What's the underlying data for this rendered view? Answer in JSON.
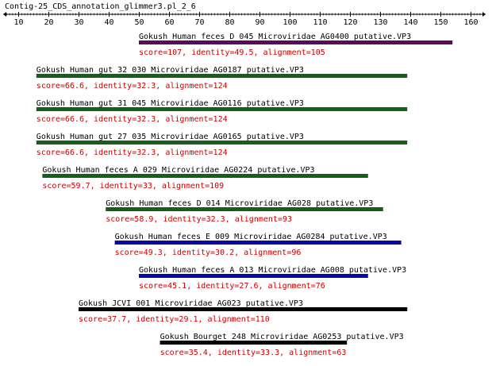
{
  "title": "Contig-25_CDS_annotation_glimmer3.pl_2_6",
  "axis": {
    "min": 5,
    "max": 165,
    "tick_labels": [
      "10",
      "20",
      "30",
      "40",
      "50",
      "60",
      "70",
      "80",
      "90",
      "100",
      "110",
      "120",
      "130",
      "140",
      "150",
      "160"
    ]
  },
  "colors": {
    "purple": "#5a0a5a",
    "green": "#1a5c1a",
    "blue": "#0a0aa0",
    "black": "#000000",
    "stats_text": "#cc0000"
  },
  "hits": [
    {
      "name": "Gokush_Human_feces_D_045_Microviridae_AG0400_putative.VP3",
      "stats": "score=107, identity=49.5, alignment=105",
      "start": 50,
      "end": 154,
      "color": "purple"
    },
    {
      "name": "Gokush_Human_gut_32_030_Microviridae_AG0187_putative.VP3",
      "stats": "score=66.6, identity=32.3, alignment=124",
      "start": 16,
      "end": 139,
      "color": "green"
    },
    {
      "name": "Gokush_Human_gut_31_045_Microviridae_AG0116_putative.VP3",
      "stats": "score=66.6, identity=32.3, alignment=124",
      "start": 16,
      "end": 139,
      "color": "green"
    },
    {
      "name": "Gokush_Human_gut_27_035_Microviridae_AG0165_putative.VP3",
      "stats": "score=66.6, identity=32.3, alignment=124",
      "start": 16,
      "end": 139,
      "color": "green"
    },
    {
      "name": "Gokush_Human_feces_A_029_Microviridae_AG0224_putative.VP3",
      "stats": "score=59.7, identity=33, alignment=109",
      "start": 18,
      "end": 126,
      "color": "green"
    },
    {
      "name": "Gokush_Human_feces_D_014_Microviridae_AG028_putative.VP3",
      "stats": "score=58.9, identity=32.3, alignment=93",
      "start": 39,
      "end": 131,
      "color": "green"
    },
    {
      "name": "Gokush_Human_feces_E_009_Microviridae_AG0284_putative.VP3",
      "stats": "score=49.3, identity=30.2, alignment=96",
      "start": 42,
      "end": 137,
      "color": "blue"
    },
    {
      "name": "Gokush_Human_feces_A_013_Microviridae_AG008_putative.VP3",
      "stats": "score=45.1, identity=27.6, alignment=76",
      "start": 50,
      "end": 126,
      "color": "blue"
    },
    {
      "name": "Gokush_JCVI_001_Microviridae_AG023_putative.VP3",
      "stats": "score=37.7, identity=29.1, alignment=110",
      "start": 30,
      "end": 139,
      "color": "black"
    },
    {
      "name": "Gokush_Bourget_248_Microviridae_AG0253_putative.VP3",
      "stats": "score=35.4, identity=33.3, alignment=63",
      "start": 57,
      "end": 119,
      "color": "black"
    }
  ]
}
